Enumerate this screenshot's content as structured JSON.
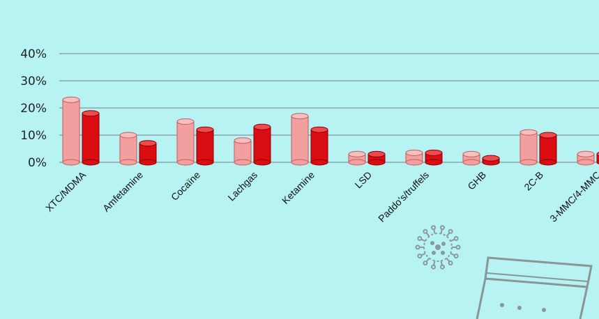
{
  "chart_data": {
    "type": "bar",
    "title": "",
    "xlabel": "",
    "ylabel": "",
    "ylim": [
      0,
      40
    ],
    "yticks": [
      "0%",
      "10%",
      "20%",
      "30%",
      "40%"
    ],
    "grid": true,
    "categories": [
      "XTC/MDMA",
      "Amfetamine",
      "Cocaïne",
      "Lachgas",
      "Ketamine",
      "LSD",
      "Paddo's/truffels",
      "GHB",
      "2C-B",
      "3-MMC/4-MMC"
    ],
    "series": [
      {
        "values": [
          23,
          10,
          15,
          8,
          17,
          3,
          3.5,
          3,
          11,
          3
        ]
      },
      {
        "values": [
          18,
          7,
          12,
          13,
          12,
          3,
          3.5,
          1.5,
          10,
          3
        ]
      }
    ],
    "colors": {
      "series1": "#f29f9f",
      "series2": "#d90d12",
      "grid": "#8aa7a6",
      "background": "#b6f3f2"
    }
  },
  "decor": {
    "virus_icon": "virus-icon",
    "bag_icon": "baggie-icon"
  }
}
